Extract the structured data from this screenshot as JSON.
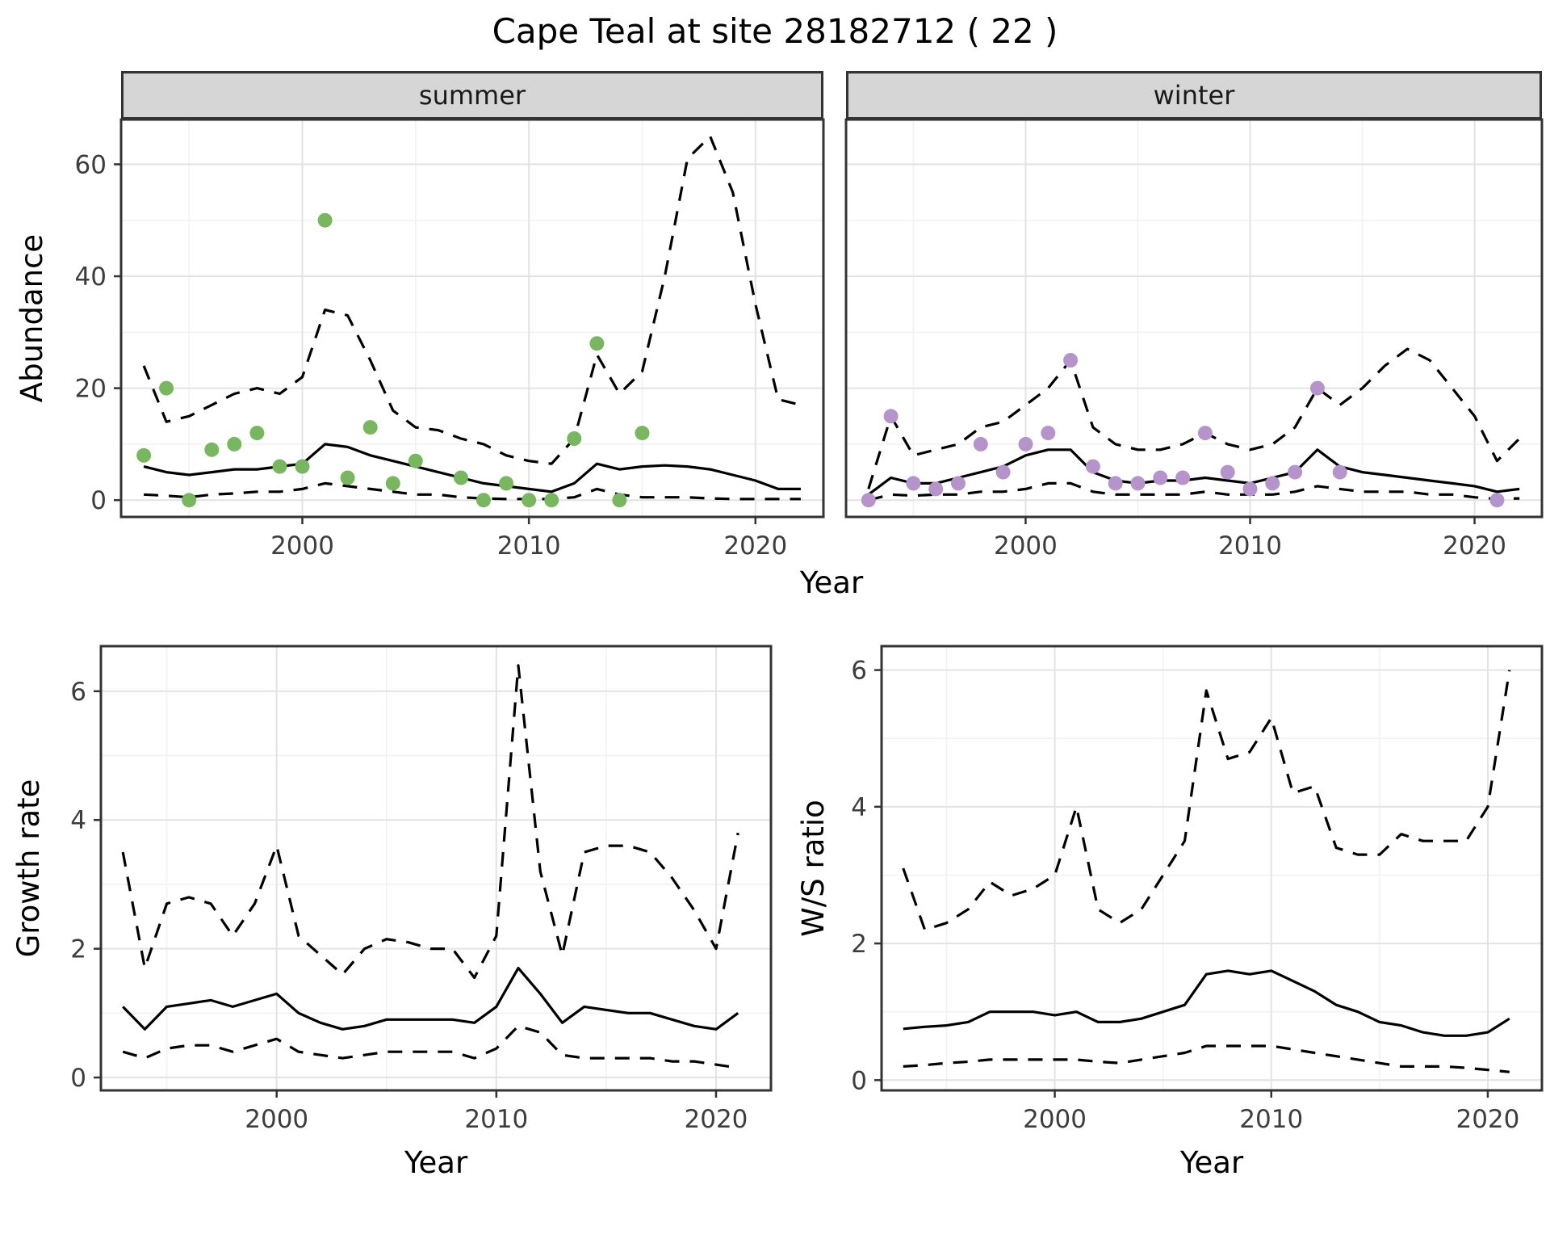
{
  "title": "Cape Teal at site 28182712 ( 22 )",
  "colors": {
    "summer_point": "#78b75f",
    "winter_point": "#b494ca",
    "line": "#000000",
    "strip_bg": "#d6d6d6",
    "panel_border": "#333333",
    "grid_major": "#e3e3e3",
    "grid_minor": "#f1f1f1",
    "tick": "#333333",
    "tick_text": "#3d3d3d"
  },
  "chart_data": [
    {
      "id": "abundance-summer",
      "type": "scatter",
      "facet_label": "summer",
      "xlabel": "Year",
      "ylabel": "Abundance",
      "xlim": [
        1992,
        2023
      ],
      "ylim": [
        -3,
        68
      ],
      "xticks": [
        2000,
        2010,
        2020
      ],
      "yticks": [
        0,
        20,
        40,
        60
      ],
      "grid": true,
      "legend": "none",
      "points_x": [
        1993,
        1994,
        1995,
        1996,
        1997,
        1998,
        1999,
        2000,
        2001,
        2002,
        2003,
        2004,
        2005,
        2007,
        2008,
        2009,
        2010,
        2011,
        2012,
        2013,
        2014,
        2015
      ],
      "points_y": [
        8,
        20,
        0,
        9,
        10,
        12,
        6,
        6,
        50,
        4,
        13,
        3,
        7,
        4,
        0,
        3,
        0,
        0,
        11,
        28,
        0,
        12
      ],
      "years": [
        1993,
        1994,
        1995,
        1996,
        1997,
        1998,
        1999,
        2000,
        2001,
        2002,
        2003,
        2004,
        2005,
        2006,
        2007,
        2008,
        2009,
        2010,
        2011,
        2012,
        2013,
        2014,
        2015,
        2016,
        2017,
        2018,
        2019,
        2020,
        2021,
        2022
      ],
      "fit": [
        6,
        5,
        4.5,
        5,
        5.5,
        5.5,
        6,
        6.5,
        10,
        9.5,
        8,
        7,
        6,
        5,
        4,
        3,
        2.5,
        2,
        1.5,
        3,
        6.5,
        5.5,
        6,
        6.2,
        6,
        5.5,
        4.5,
        3.5,
        2,
        2
      ],
      "upper": [
        24,
        14,
        15,
        17,
        19,
        20,
        19,
        22,
        34,
        33,
        25,
        16,
        13,
        12.5,
        11,
        10,
        8,
        7,
        6.5,
        11,
        26,
        19,
        23,
        40,
        61,
        65,
        55,
        35,
        18,
        17
      ],
      "lower": [
        1,
        0.8,
        0.5,
        1,
        1.2,
        1.5,
        1.5,
        2,
        3,
        2.5,
        2,
        1.5,
        1,
        1,
        0.5,
        0.3,
        0.2,
        0.2,
        0.2,
        0.5,
        2,
        1,
        0.5,
        0.5,
        0.5,
        0.3,
        0.2,
        0.2,
        0.2,
        0.2
      ]
    },
    {
      "id": "abundance-winter",
      "type": "scatter",
      "facet_label": "winter",
      "xlabel": "Year",
      "ylabel": "Abundance",
      "xlim": [
        1992,
        2023
      ],
      "ylim": [
        -3,
        68
      ],
      "xticks": [
        2000,
        2010,
        2020
      ],
      "yticks": [
        0,
        20,
        40,
        60
      ],
      "grid": true,
      "legend": "none",
      "points_x": [
        1993,
        1994,
        1995,
        1996,
        1997,
        1998,
        1999,
        2000,
        2001,
        2002,
        2003,
        2004,
        2005,
        2006,
        2007,
        2008,
        2009,
        2010,
        2011,
        2012,
        2013,
        2014,
        2021
      ],
      "points_y": [
        0,
        15,
        3,
        2,
        3,
        10,
        5,
        10,
        12,
        25,
        6,
        3,
        3,
        4,
        4,
        12,
        5,
        2,
        3,
        5,
        20,
        5,
        0
      ],
      "years": [
        1993,
        1994,
        1995,
        1996,
        1997,
        1998,
        1999,
        2000,
        2001,
        2002,
        2003,
        2004,
        2005,
        2006,
        2007,
        2008,
        2009,
        2010,
        2011,
        2012,
        2013,
        2014,
        2015,
        2016,
        2017,
        2018,
        2019,
        2020,
        2021,
        2022
      ],
      "fit": [
        1,
        4,
        3,
        3,
        4,
        5,
        6,
        8,
        9,
        9,
        5,
        3.5,
        3,
        3.5,
        3.5,
        4,
        3.5,
        3,
        4,
        5,
        9,
        6,
        5,
        4.5,
        4,
        3.5,
        3,
        2.5,
        1.5,
        2
      ],
      "upper": [
        2,
        15,
        8,
        9,
        10,
        13,
        14,
        17,
        20,
        25,
        13,
        10,
        9,
        9,
        10,
        12,
        10,
        9,
        10,
        13,
        20,
        17,
        20,
        24,
        27,
        25,
        20,
        15,
        7,
        11
      ],
      "lower": [
        0,
        1,
        0.8,
        1,
        1,
        1.5,
        1.5,
        2,
        3,
        3,
        1.5,
        1,
        1,
        1,
        1,
        1.5,
        1,
        1,
        1,
        1.5,
        2.5,
        2,
        1.5,
        1.5,
        1.5,
        1,
        1,
        0.5,
        0.2,
        0.3
      ]
    },
    {
      "id": "growth-rate",
      "type": "line",
      "facet_label": "",
      "xlabel": "Year",
      "ylabel": "Growth rate",
      "xlim": [
        1992,
        2022.5
      ],
      "ylim": [
        -0.2,
        6.7
      ],
      "xticks": [
        2000,
        2010,
        2020
      ],
      "yticks": [
        0,
        2,
        4,
        6
      ],
      "grid": true,
      "legend": "none",
      "years": [
        1993,
        1994,
        1995,
        1996,
        1997,
        1998,
        1999,
        2000,
        2001,
        2002,
        2003,
        2004,
        2005,
        2006,
        2007,
        2008,
        2009,
        2010,
        2011,
        2012,
        2013,
        2014,
        2015,
        2016,
        2017,
        2018,
        2019,
        2020,
        2021
      ],
      "fit": [
        1.1,
        0.75,
        1.1,
        1.15,
        1.2,
        1.1,
        1.2,
        1.3,
        1.0,
        0.85,
        0.75,
        0.8,
        0.9,
        0.9,
        0.9,
        0.9,
        0.85,
        1.1,
        1.7,
        1.3,
        0.85,
        1.1,
        1.05,
        1.0,
        1.0,
        0.9,
        0.8,
        0.75,
        1.0
      ],
      "upper": [
        3.5,
        1.7,
        2.7,
        2.8,
        2.7,
        2.2,
        2.7,
        3.6,
        2.2,
        1.9,
        1.6,
        2.0,
        2.15,
        2.1,
        2.0,
        2.0,
        1.55,
        2.2,
        6.4,
        3.2,
        1.9,
        3.5,
        3.6,
        3.6,
        3.5,
        3.1,
        2.6,
        2.0,
        3.8
      ],
      "lower": [
        0.4,
        0.3,
        0.45,
        0.5,
        0.5,
        0.4,
        0.5,
        0.6,
        0.4,
        0.35,
        0.3,
        0.35,
        0.4,
        0.4,
        0.4,
        0.4,
        0.3,
        0.45,
        0.8,
        0.7,
        0.35,
        0.3,
        0.3,
        0.3,
        0.3,
        0.25,
        0.25,
        0.2,
        0.15
      ]
    },
    {
      "id": "ws-ratio",
      "type": "line",
      "facet_label": "",
      "xlabel": "Year",
      "ylabel": "W/S ratio",
      "xlim": [
        1992,
        2022.5
      ],
      "ylim": [
        -0.15,
        6.35
      ],
      "xticks": [
        2000,
        2010,
        2020
      ],
      "yticks": [
        0,
        2,
        4,
        6
      ],
      "grid": true,
      "legend": "none",
      "years": [
        1993,
        1994,
        1995,
        1996,
        1997,
        1998,
        1999,
        2000,
        2001,
        2002,
        2003,
        2004,
        2005,
        2006,
        2007,
        2008,
        2009,
        2010,
        2011,
        2012,
        2013,
        2014,
        2015,
        2016,
        2017,
        2018,
        2019,
        2020,
        2021
      ],
      "fit": [
        0.75,
        0.78,
        0.8,
        0.85,
        1.0,
        1.0,
        1.0,
        0.95,
        1.0,
        0.85,
        0.85,
        0.9,
        1.0,
        1.1,
        1.55,
        1.6,
        1.55,
        1.6,
        1.45,
        1.3,
        1.1,
        1.0,
        0.85,
        0.8,
        0.7,
        0.65,
        0.65,
        0.7,
        0.9
      ],
      "upper": [
        3.1,
        2.2,
        2.3,
        2.5,
        2.9,
        2.7,
        2.8,
        3.0,
        4.0,
        2.5,
        2.3,
        2.5,
        3.0,
        3.5,
        5.7,
        4.7,
        4.8,
        5.3,
        4.2,
        4.3,
        3.4,
        3.3,
        3.3,
        3.6,
        3.5,
        3.5,
        3.5,
        4.0,
        6.0
      ],
      "lower": [
        0.2,
        0.22,
        0.25,
        0.27,
        0.3,
        0.3,
        0.3,
        0.3,
        0.3,
        0.27,
        0.25,
        0.3,
        0.35,
        0.4,
        0.5,
        0.5,
        0.5,
        0.5,
        0.45,
        0.4,
        0.35,
        0.3,
        0.25,
        0.2,
        0.2,
        0.2,
        0.18,
        0.15,
        0.12
      ]
    }
  ]
}
